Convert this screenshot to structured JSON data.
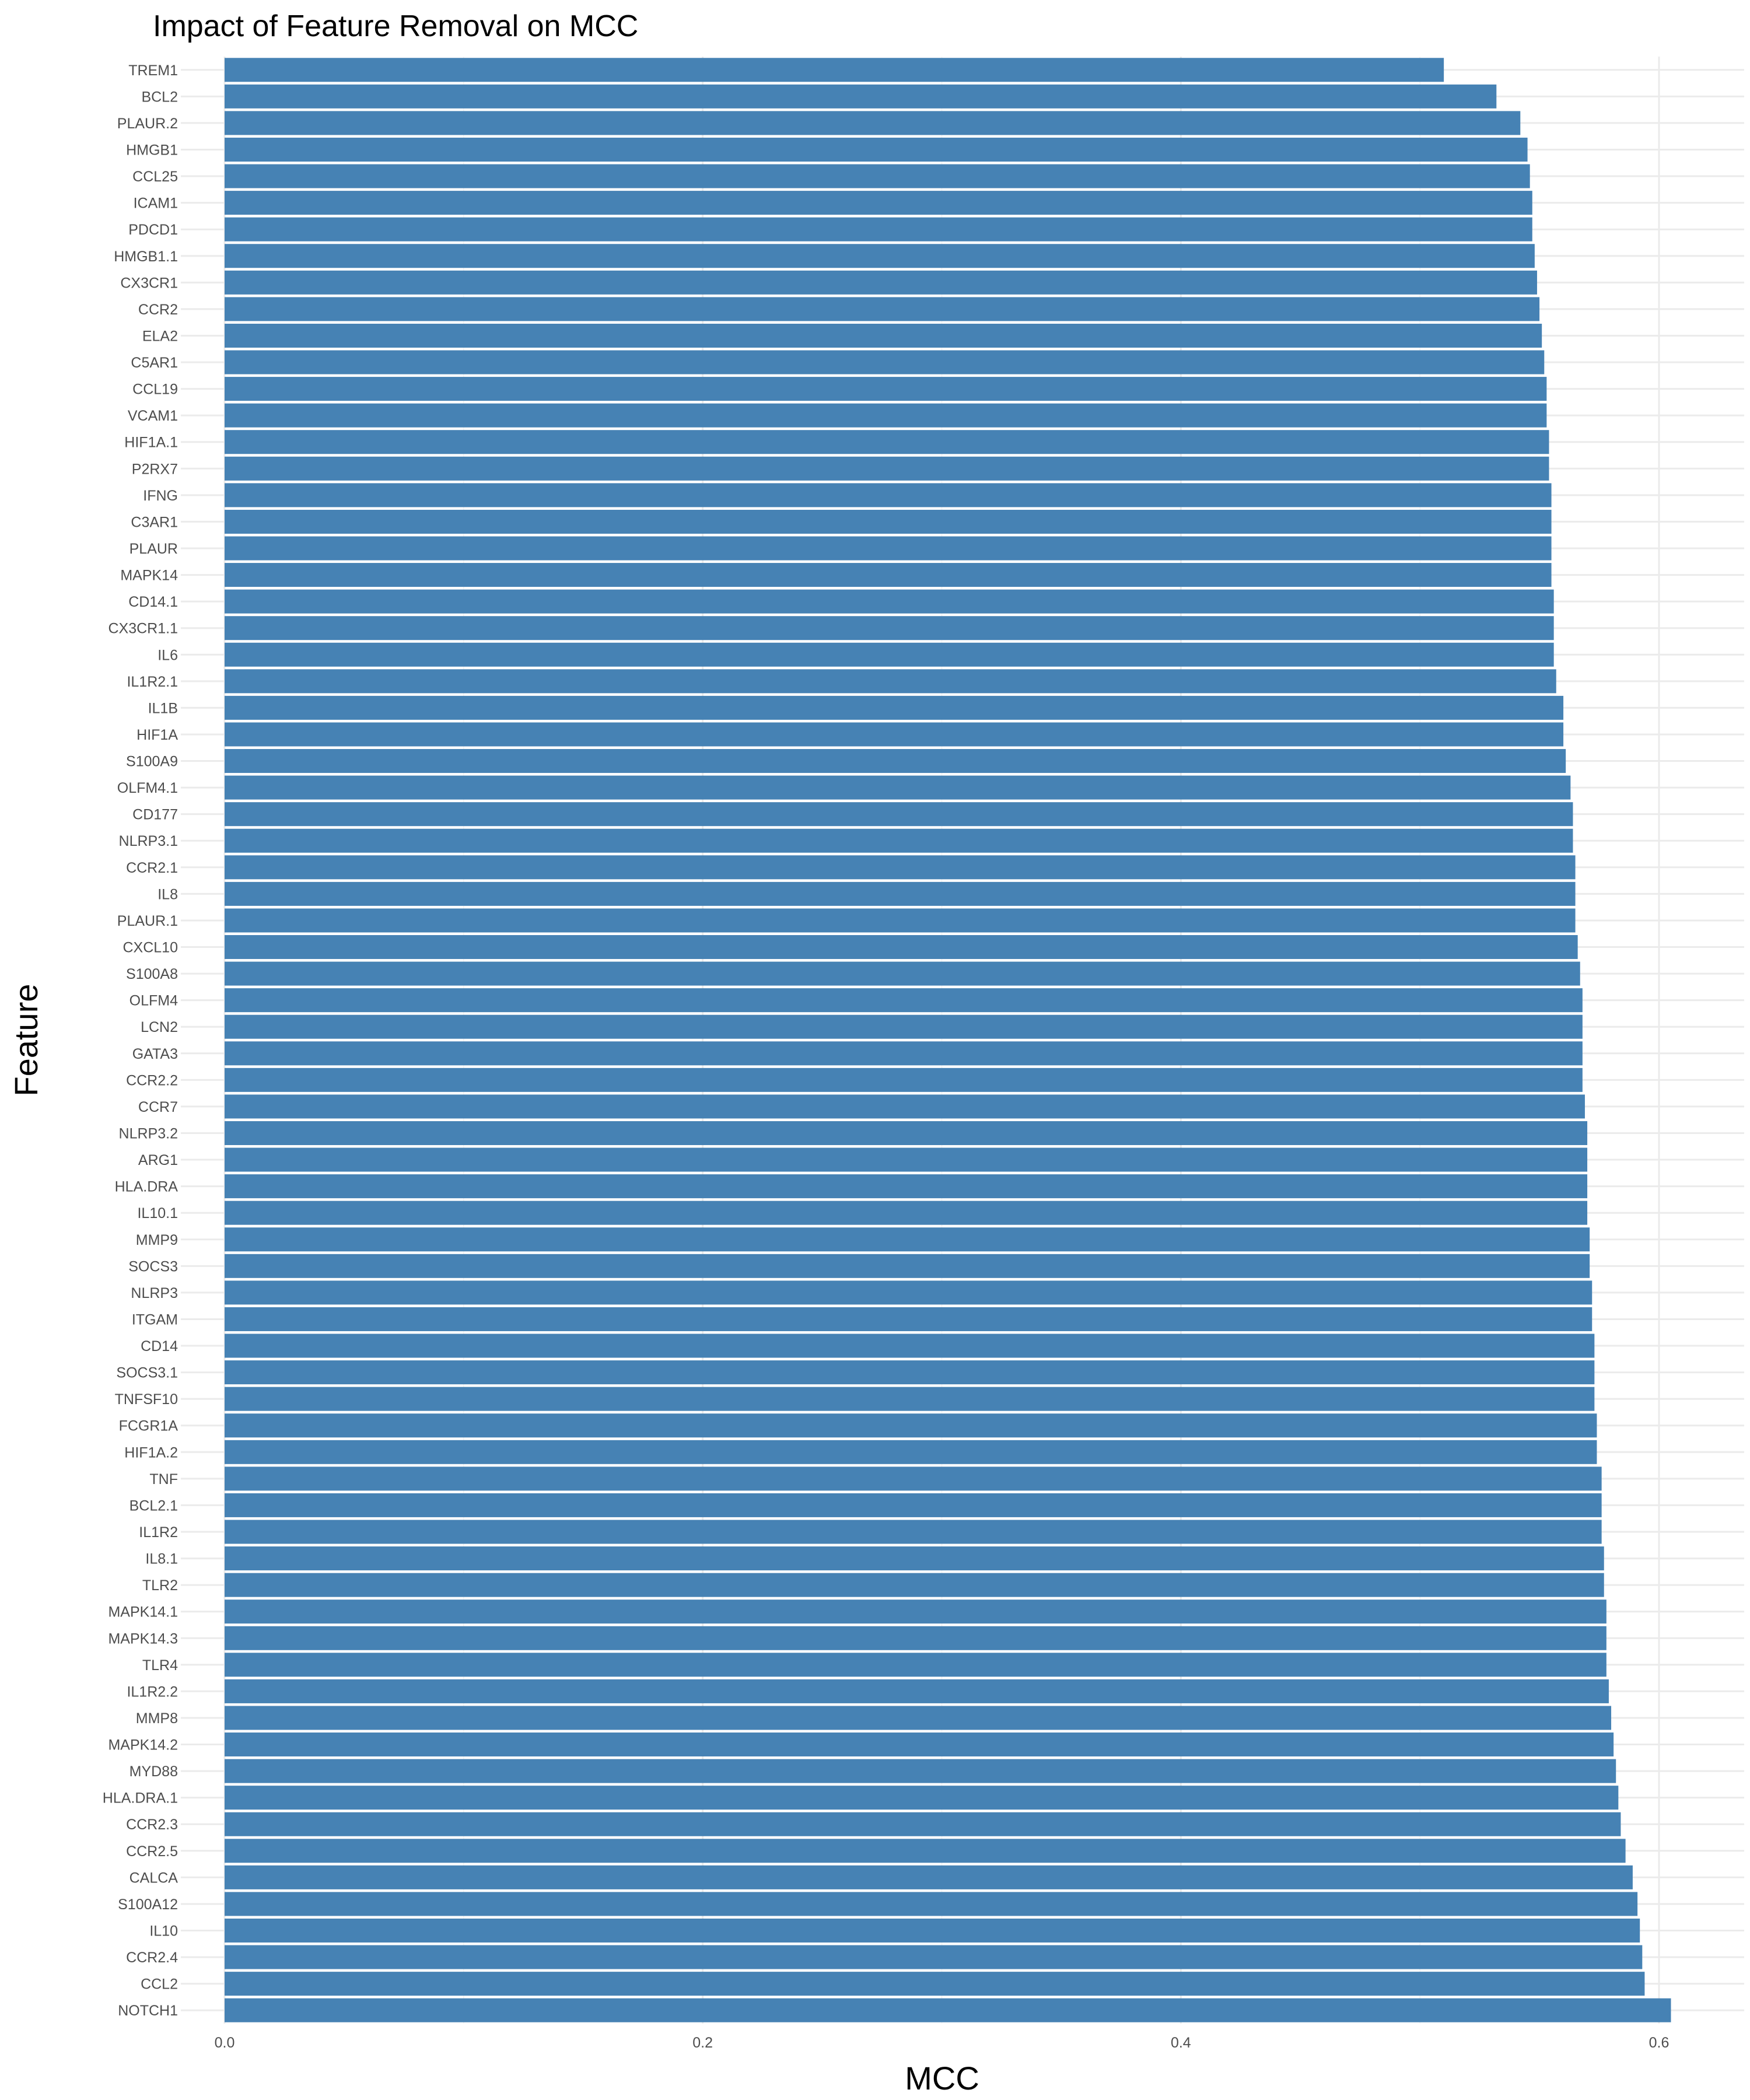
{
  "chart_data": {
    "type": "bar",
    "orientation": "horizontal",
    "title": "Impact of Feature Removal on MCC",
    "xlabel": "MCC",
    "ylabel": "Feature",
    "xlim": [
      0,
      0.6
    ],
    "xticks": [
      0.0,
      0.2,
      0.4,
      0.6
    ],
    "xtick_labels": [
      "0.0",
      "0.2",
      "0.4",
      "0.6"
    ],
    "grid": true,
    "legend": "none",
    "bar_color": "#4682B4",
    "categories": [
      "TREM1",
      "BCL2",
      "PLAUR.2",
      "HMGB1",
      "CCL25",
      "ICAM1",
      "PDCD1",
      "HMGB1.1",
      "CX3CR1",
      "CCR2",
      "ELA2",
      "C5AR1",
      "CCL19",
      "VCAM1",
      "HIF1A.1",
      "P2RX7",
      "IFNG",
      "C3AR1",
      "PLAUR",
      "MAPK14",
      "CD14.1",
      "CX3CR1.1",
      "IL6",
      "IL1R2.1",
      "IL1B",
      "HIF1A",
      "S100A9",
      "OLFM4.1",
      "CD177",
      "NLRP3.1",
      "CCR2.1",
      "IL8",
      "PLAUR.1",
      "CXCL10",
      "S100A8",
      "OLFM4",
      "LCN2",
      "GATA3",
      "CCR2.2",
      "CCR7",
      "NLRP3.2",
      "ARG1",
      "HLA.DRA",
      "IL10.1",
      "MMP9",
      "SOCS3",
      "NLRP3",
      "ITGAM",
      "CD14",
      "SOCS3.1",
      "TNFSF10",
      "FCGR1A",
      "HIF1A.2",
      "TNF",
      "BCL2.1",
      "IL1R2",
      "IL8.1",
      "TLR2",
      "MAPK14.1",
      "MAPK14.3",
      "TLR4",
      "IL1R2.2",
      "MMP8",
      "MAPK14.2",
      "MYD88",
      "HLA.DRA.1",
      "CCR2.3",
      "CCR2.5",
      "CALCA",
      "S100A12",
      "IL10",
      "CCR2.4",
      "CCL2",
      "NOTCH1"
    ],
    "values": [
      0.51,
      0.532,
      0.542,
      0.545,
      0.546,
      0.547,
      0.547,
      0.548,
      0.549,
      0.55,
      0.551,
      0.552,
      0.553,
      0.553,
      0.554,
      0.554,
      0.555,
      0.555,
      0.555,
      0.555,
      0.556,
      0.556,
      0.556,
      0.557,
      0.56,
      0.56,
      0.561,
      0.563,
      0.564,
      0.564,
      0.565,
      0.565,
      0.565,
      0.566,
      0.567,
      0.568,
      0.568,
      0.568,
      0.568,
      0.569,
      0.57,
      0.57,
      0.57,
      0.57,
      0.571,
      0.571,
      0.572,
      0.572,
      0.573,
      0.573,
      0.573,
      0.574,
      0.574,
      0.576,
      0.576,
      0.576,
      0.577,
      0.577,
      0.578,
      0.578,
      0.578,
      0.579,
      0.58,
      0.581,
      0.582,
      0.583,
      0.584,
      0.586,
      0.589,
      0.591,
      0.592,
      0.593,
      0.594,
      0.605
    ]
  }
}
